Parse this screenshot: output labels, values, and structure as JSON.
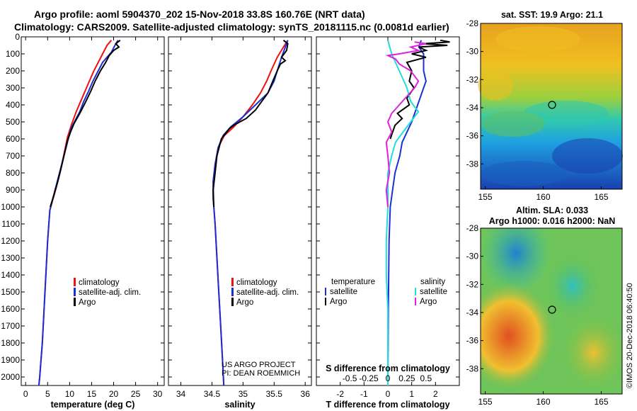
{
  "header": {
    "title_line1": "Argo profile: aoml 5904370_202 15-Nov-2018 33.8S 160.76E (NRT data)",
    "title_line2": "Climatology: CARS2009. Satellite-adjusted climatology: synTS_20181115.nc (0.0081d earlier)"
  },
  "credit": {
    "project": "US ARGO PROJECT",
    "pi": "PI: DEAN ROEMMICH",
    "imos": "©IMOS 20-Dec-2018 06:40:50"
  },
  "colors": {
    "climatology": "#ee1111",
    "satellite": "#1a2fd6",
    "argo": "#000000",
    "s_satellite": "#22dddd",
    "s_argo": "#dd22dd"
  },
  "depth_axis": {
    "ticks": [
      0,
      100,
      200,
      300,
      400,
      500,
      600,
      700,
      800,
      900,
      1000,
      1100,
      1200,
      1300,
      1400,
      1500,
      1600,
      1700,
      1800,
      1900,
      2000
    ],
    "range": [
      0,
      2050
    ]
  },
  "chart_data": [
    {
      "type": "line",
      "panel": "temperature",
      "xlabel": "temperature (deg C)",
      "xlim": [
        -1,
        31.5
      ],
      "xticks": [
        0,
        5,
        10,
        15,
        20,
        25,
        30
      ],
      "ylim": [
        0,
        2050
      ],
      "legend": [
        "climatology",
        "satellite-adj. clim.",
        "Argo"
      ],
      "series": [
        {
          "name": "climatology",
          "color_key": "climatology",
          "points": [
            [
              19.5,
              20
            ],
            [
              18.5,
              50
            ],
            [
              17.5,
              100
            ],
            [
              16.5,
              150
            ],
            [
              15.5,
              200
            ],
            [
              14.5,
              260
            ],
            [
              13.5,
              320
            ],
            [
              12.5,
              380
            ],
            [
              11.5,
              440
            ],
            [
              10.5,
              510
            ],
            [
              9.5,
              590
            ],
            [
              8.8,
              680
            ],
            [
              7.8,
              800
            ],
            [
              6.8,
              900
            ],
            [
              5.5,
              1020
            ],
            [
              5,
              1200
            ],
            [
              4.6,
              1400
            ],
            [
              4.2,
              1600
            ],
            [
              3.8,
              1800
            ],
            [
              3.2,
              2000
            ],
            [
              3,
              2050
            ]
          ]
        },
        {
          "name": "satellite-adj. clim.",
          "color_key": "satellite",
          "points": [
            [
              21,
              20
            ],
            [
              20.3,
              50
            ],
            [
              19.5,
              90
            ],
            [
              17.5,
              150
            ],
            [
              16.5,
              200
            ],
            [
              15.3,
              260
            ],
            [
              14.3,
              320
            ],
            [
              13.2,
              380
            ],
            [
              12.3,
              440
            ],
            [
              11.3,
              490
            ],
            [
              10.3,
              540
            ],
            [
              9.5,
              620
            ],
            [
              8.7,
              700
            ],
            [
              7.5,
              820
            ],
            [
              6.5,
              920
            ],
            [
              5.5,
              1020
            ],
            [
              5,
              1200
            ],
            [
              4.6,
              1400
            ],
            [
              4.2,
              1600
            ],
            [
              3.8,
              1800
            ],
            [
              3.2,
              2000
            ],
            [
              3,
              2050
            ]
          ]
        },
        {
          "name": "Argo",
          "color_key": "argo",
          "points": [
            [
              21.5,
              20
            ],
            [
              20.5,
              40
            ],
            [
              21.2,
              60
            ],
            [
              20,
              80
            ],
            [
              19,
              110
            ],
            [
              18.2,
              150
            ],
            [
              17,
              200
            ],
            [
              15.8,
              260
            ],
            [
              14.8,
              320
            ],
            [
              13.5,
              390
            ],
            [
              12.3,
              450
            ],
            [
              11,
              510
            ],
            [
              10.2,
              560
            ],
            [
              9.5,
              610
            ],
            [
              8.8,
              690
            ],
            [
              8,
              780
            ],
            [
              7.2,
              860
            ],
            [
              6.3,
              940
            ],
            [
              5.6,
              1000
            ]
          ]
        }
      ]
    },
    {
      "type": "line",
      "panel": "salinity",
      "xlabel": "salinity",
      "xlim": [
        33.8,
        36.1
      ],
      "xticks": [
        34,
        34.5,
        35,
        35.5,
        36
      ],
      "xtick_labels": [
        "34",
        "34.5",
        "35",
        "35.5",
        "36"
      ],
      "ylim": [
        0,
        2050
      ],
      "legend": [
        "climatology",
        "satellite-adj. clim.",
        "Argo"
      ],
      "series": [
        {
          "name": "climatology",
          "color_key": "climatology",
          "points": [
            [
              35.72,
              20
            ],
            [
              35.65,
              60
            ],
            [
              35.55,
              120
            ],
            [
              35.45,
              200
            ],
            [
              35.38,
              260
            ],
            [
              35.28,
              330
            ],
            [
              35.15,
              400
            ],
            [
              35.0,
              470
            ],
            [
              34.85,
              530
            ],
            [
              34.7,
              580
            ],
            [
              34.6,
              650
            ],
            [
              34.55,
              750
            ],
            [
              34.52,
              850
            ],
            [
              34.52,
              950
            ],
            [
              34.55,
              1100
            ],
            [
              34.58,
              1300
            ],
            [
              34.61,
              1500
            ],
            [
              34.64,
              1700
            ],
            [
              34.67,
              1900
            ],
            [
              34.69,
              2050
            ]
          ]
        },
        {
          "name": "satellite-adj. clim.",
          "color_key": "satellite",
          "points": [
            [
              35.72,
              20
            ],
            [
              35.68,
              60
            ],
            [
              35.62,
              120
            ],
            [
              35.55,
              200
            ],
            [
              35.5,
              260
            ],
            [
              35.4,
              330
            ],
            [
              35.2,
              400
            ],
            [
              35.0,
              470
            ],
            [
              34.8,
              530
            ],
            [
              34.68,
              580
            ],
            [
              34.6,
              650
            ],
            [
              34.55,
              750
            ],
            [
              34.52,
              850
            ],
            [
              34.52,
              950
            ],
            [
              34.55,
              1100
            ],
            [
              34.58,
              1300
            ],
            [
              34.61,
              1500
            ],
            [
              34.64,
              1700
            ],
            [
              34.67,
              1900
            ],
            [
              34.69,
              2050
            ]
          ]
        },
        {
          "name": "Argo",
          "color_key": "argo",
          "points": [
            [
              35.65,
              20
            ],
            [
              35.72,
              40
            ],
            [
              35.7,
              80
            ],
            [
              35.62,
              120
            ],
            [
              35.68,
              140
            ],
            [
              35.6,
              160
            ],
            [
              35.55,
              200
            ],
            [
              35.48,
              260
            ],
            [
              35.4,
              330
            ],
            [
              35.3,
              380
            ],
            [
              35.2,
              430
            ],
            [
              35.05,
              480
            ],
            [
              34.85,
              520
            ],
            [
              34.78,
              540
            ],
            [
              34.65,
              600
            ],
            [
              34.58,
              700
            ],
            [
              34.55,
              800
            ],
            [
              34.52,
              900
            ],
            [
              34.53,
              1000
            ]
          ]
        }
      ]
    },
    {
      "type": "line",
      "panel": "differences",
      "xlabel": "T difference from climatology",
      "xlabel_s": "S difference from climatology",
      "xlim": [
        -3,
        3
      ],
      "xticks": [
        -2,
        -1,
        0,
        1,
        2
      ],
      "xtick_labels": [
        "-2",
        "-1",
        "0",
        "1",
        "2"
      ],
      "xticks_s": [
        -0.5,
        -0.25,
        0,
        0.25,
        0.5
      ],
      "xtick_labels_s": [
        "-0.5",
        "-0.25",
        "0",
        "0.25",
        "0.5"
      ],
      "ylim": [
        0,
        2050
      ],
      "legend_left_title": "temperature",
      "legend_right_title": "salinity",
      "legend_left": [
        "satellite",
        "Argo"
      ],
      "legend_right": [
        "satellite",
        "Argo"
      ],
      "series": [
        {
          "name": "satellite",
          "color_key": "satellite",
          "points": [
            [
              1.4,
              20
            ],
            [
              1.3,
              60
            ],
            [
              1.5,
              100
            ],
            [
              1.5,
              200
            ],
            [
              1.6,
              260
            ],
            [
              1.5,
              300
            ],
            [
              1.3,
              380
            ],
            [
              1.0,
              500
            ],
            [
              0.6,
              620
            ],
            [
              0.5,
              700
            ],
            [
              0.3,
              800
            ],
            [
              0.2,
              900
            ],
            [
              0.1,
              1000
            ],
            [
              0.05,
              1200
            ],
            [
              0.02,
              1600
            ],
            [
              0.0,
              2050
            ]
          ]
        },
        {
          "name": "Argo",
          "color_key": "argo",
          "points": [
            [
              2.2,
              20
            ],
            [
              2.6,
              30
            ],
            [
              1.5,
              40
            ],
            [
              2.5,
              50
            ],
            [
              1.3,
              60
            ],
            [
              1.6,
              80
            ],
            [
              1.0,
              100
            ],
            [
              1.6,
              120
            ],
            [
              0.8,
              150
            ],
            [
              1.0,
              200
            ],
            [
              0.9,
              260
            ],
            [
              1.1,
              300
            ],
            [
              0.8,
              360
            ],
            [
              0.9,
              400
            ],
            [
              0.4,
              450
            ],
            [
              0.6,
              480
            ],
            [
              0.3,
              520
            ],
            [
              0.2,
              560
            ],
            [
              0.1,
              600
            ]
          ]
        },
        {
          "name": "satellite",
          "color_key": "s_satellite",
          "points": [
            [
              0.0,
              20
            ],
            [
              0.05,
              100
            ],
            [
              0.15,
              200
            ],
            [
              0.25,
              300
            ],
            [
              0.3,
              380
            ],
            [
              0.4,
              440
            ],
            [
              0.3,
              500
            ],
            [
              0.2,
              560
            ],
            [
              0.1,
              620
            ],
            [
              0.05,
              700
            ],
            [
              0.0,
              800
            ],
            [
              0.0,
              1000
            ],
            [
              -0.02,
              1200
            ],
            [
              -0.02,
              1400
            ],
            [
              0.0,
              1600
            ],
            [
              0.0,
              2050
            ]
          ]
        },
        {
          "name": "Argo",
          "color_key": "s_argo",
          "points": [
            [
              0.35,
              30
            ],
            [
              0.5,
              40
            ],
            [
              0.3,
              60
            ],
            [
              0.4,
              80
            ],
            [
              0.15,
              100
            ],
            [
              0.0,
              110
            ],
            [
              0.1,
              130
            ],
            [
              0.15,
              160
            ],
            [
              0.3,
              200
            ],
            [
              0.4,
              260
            ],
            [
              0.35,
              300
            ],
            [
              0.25,
              350
            ],
            [
              0.15,
              400
            ],
            [
              0.05,
              450
            ],
            [
              0.0,
              500
            ],
            [
              0.05,
              560
            ],
            [
              -0.02,
              620
            ],
            [
              0.0,
              700
            ],
            [
              0.02,
              800
            ],
            [
              -0.02,
              900
            ],
            [
              0.0,
              1000
            ]
          ]
        }
      ]
    },
    {
      "type": "heatmap",
      "panel": "sst_map",
      "title": "sat. SST: 19.9 Argo: 21.1",
      "xticks": [
        155,
        160,
        165
      ],
      "yticks": [
        -28,
        -30,
        -32,
        -34,
        -36,
        -38
      ],
      "xlim": [
        154.6,
        166.8
      ],
      "ylim": [
        -39.8,
        -28
      ],
      "marker": {
        "lon": 160.76,
        "lat": -33.8
      }
    },
    {
      "type": "heatmap",
      "panel": "sla_map",
      "title_line1": "Altim. SLA: 0.033",
      "title_line2": "Argo h1000: 0.016 h2000: NaN",
      "xticks": [
        155,
        160,
        165
      ],
      "yticks": [
        -28,
        -30,
        -32,
        -34,
        -36,
        -38
      ],
      "xlim": [
        154.6,
        166.8
      ],
      "ylim": [
        -39.8,
        -28
      ],
      "marker": {
        "lon": 160.76,
        "lat": -33.8
      }
    }
  ]
}
